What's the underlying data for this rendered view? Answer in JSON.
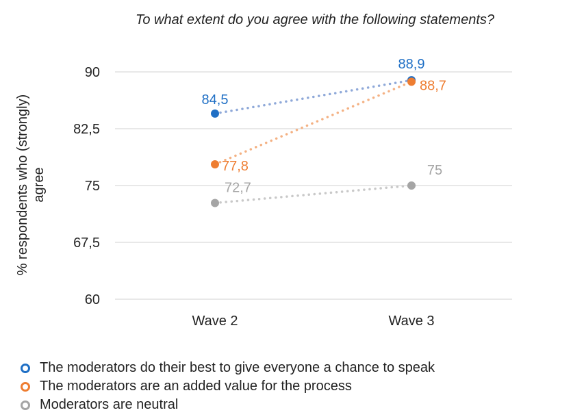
{
  "chart_data": {
    "type": "line",
    "title": "To what extent do you agree with the following statements?",
    "ylabel": "% respondents who (strongly) agree",
    "xlabel": "",
    "categories": [
      "Wave 2",
      "Wave 3"
    ],
    "ylim": [
      60,
      90
    ],
    "yticks": [
      "60",
      "67,5",
      "75",
      "82,5",
      "90"
    ],
    "ytick_values": [
      60,
      67.5,
      75,
      82.5,
      90
    ],
    "grid": true,
    "line_style": "dotted",
    "legend_position": "bottom",
    "series": [
      {
        "name": "The moderators do their best to give everyone a chance to speak",
        "values": [
          84.5,
          88.9
        ],
        "labels": [
          "84,5",
          "88,9"
        ],
        "color": "#1f6fc5",
        "line_color": "#8fa9d9"
      },
      {
        "name": "The moderators are an added value for the process",
        "values": [
          77.8,
          88.7
        ],
        "labels": [
          "77,8",
          "88,7"
        ],
        "color": "#ee7d31",
        "line_color": "#f4b183"
      },
      {
        "name": "Moderators are neutral",
        "values": [
          72.7,
          75
        ],
        "labels": [
          "72,7",
          "75"
        ],
        "color": "#a5a5a5",
        "line_color": "#c9c9c9"
      }
    ]
  }
}
